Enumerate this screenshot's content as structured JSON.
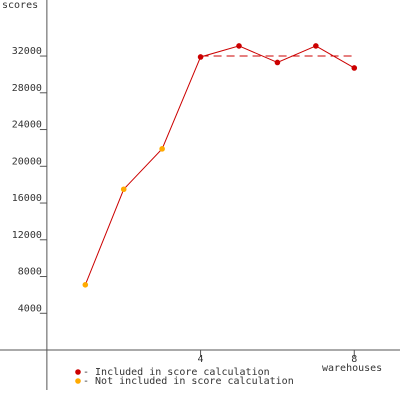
{
  "chart_data": {
    "type": "line",
    "y_label": "scores",
    "x_label": "warehouses",
    "x": [
      1,
      2,
      3,
      4,
      5,
      6,
      7,
      8
    ],
    "values": [
      7100,
      17500,
      21900,
      31900,
      33100,
      31300,
      33100,
      30700
    ],
    "line_color": "#cc0000",
    "point_colors": [
      "#ffaa00",
      "#ffaa00",
      "#ffaa00",
      "#cc0000",
      "#cc0000",
      "#cc0000",
      "#cc0000",
      "#cc0000"
    ],
    "score_line": {
      "value": 32000,
      "from": 4,
      "to": 8,
      "color": "#cc0000"
    },
    "legend": [
      {
        "label": "- Included in score calculation",
        "color": "#cc0000"
      },
      {
        "label": "- Not included in score calculation",
        "color": "#ffaa00"
      }
    ],
    "xlim": [
      -1.22,
      9.19
    ],
    "xticks": [
      4,
      8
    ],
    "ylim": [
      -4350,
      38100
    ],
    "yticks": [
      4000,
      8000,
      12000,
      16000,
      20000,
      24000,
      28000,
      32000
    ]
  }
}
